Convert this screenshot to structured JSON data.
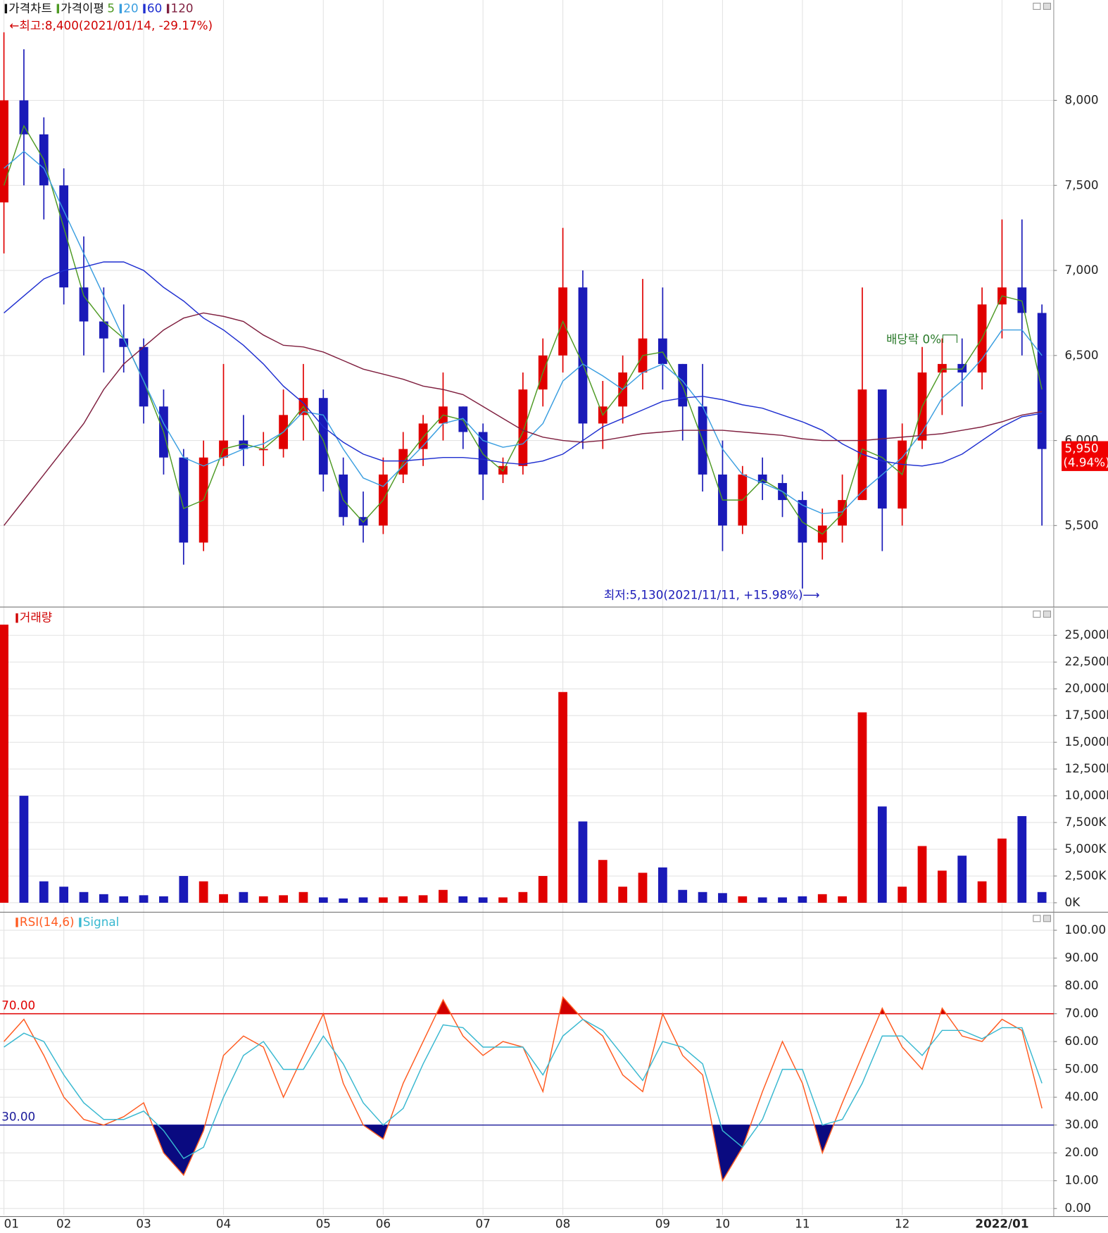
{
  "chart_data": [
    {
      "type": "candlestick",
      "title": "가격차트",
      "ma_title": "가격이평",
      "up_color": "#e00000",
      "down_color": "#1a1ab8",
      "open": [
        7400,
        8000,
        7800,
        7500,
        6900,
        6700,
        6600,
        6550,
        6200,
        5900,
        5400,
        5900,
        6000,
        5950,
        5950,
        6150,
        6250,
        5800,
        5550,
        5500,
        5800,
        5950,
        6100,
        6200,
        6050,
        5800,
        5850,
        6300,
        6500,
        6900,
        6100,
        6200,
        6400,
        6600,
        6450,
        6200,
        5800,
        5500,
        5800,
        5750,
        5650,
        5400,
        5500,
        5650,
        6300,
        5600,
        6000,
        6400,
        6450,
        6400,
        6800,
        6900,
        6750
      ],
      "high": [
        8400,
        8300,
        7900,
        7600,
        7200,
        6900,
        6800,
        6600,
        6300,
        5950,
        6000,
        6450,
        6150,
        6050,
        6300,
        6450,
        6300,
        5900,
        5700,
        5900,
        6050,
        6150,
        6400,
        6200,
        6100,
        5900,
        6400,
        6600,
        7250,
        7000,
        6350,
        6500,
        6950,
        6900,
        6450,
        6450,
        6000,
        5850,
        5900,
        5800,
        5700,
        5600,
        5800,
        6900,
        6300,
        6100,
        6550,
        6600,
        6600,
        6900,
        7300,
        7300,
        6800
      ],
      "low": [
        7100,
        7500,
        7300,
        6800,
        6500,
        6400,
        6400,
        6100,
        5800,
        5270,
        5350,
        5850,
        5850,
        5850,
        5900,
        6000,
        5700,
        5500,
        5400,
        5450,
        5750,
        5850,
        6000,
        5950,
        5650,
        5750,
        5800,
        6200,
        6400,
        5950,
        5950,
        6100,
        6300,
        6300,
        6000,
        5700,
        5350,
        5450,
        5650,
        5550,
        5130,
        5300,
        5400,
        5650,
        5350,
        5500,
        5950,
        6150,
        6200,
        6300,
        6600,
        6500,
        5500
      ],
      "close": [
        8000,
        7800,
        7500,
        6900,
        6700,
        6600,
        6550,
        6200,
        5900,
        5400,
        5900,
        6000,
        5950,
        5950,
        6150,
        6250,
        5800,
        5550,
        5500,
        5800,
        5950,
        6100,
        6200,
        6050,
        5800,
        5850,
        6300,
        6500,
        6900,
        6100,
        6200,
        6400,
        6600,
        6450,
        6200,
        5800,
        5500,
        5800,
        5750,
        5650,
        5400,
        5500,
        5650,
        6300,
        5600,
        6000,
        6400,
        6450,
        6400,
        6800,
        6900,
        6750,
        5950
      ],
      "series": [
        {
          "name": "5",
          "color": "#4e9a24",
          "values": [
            7500,
            7850,
            7650,
            7250,
            6850,
            6700,
            6600,
            6350,
            6050,
            5600,
            5650,
            5950,
            5980,
            5950,
            6050,
            6200,
            6000,
            5650,
            5520,
            5650,
            5870,
            6020,
            6150,
            6120,
            5920,
            5820,
            6050,
            6400,
            6700,
            6450,
            6150,
            6300,
            6500,
            6520,
            6320,
            6000,
            5650,
            5650,
            5770,
            5700,
            5520,
            5450,
            5570,
            5950,
            5900,
            5800,
            6200,
            6420,
            6420,
            6600,
            6850,
            6820,
            6300
          ]
        },
        {
          "name": "20",
          "color": "#3a9ee0",
          "values": [
            7600,
            7700,
            7600,
            7350,
            7100,
            6850,
            6600,
            6350,
            6100,
            5900,
            5850,
            5900,
            5950,
            5980,
            6050,
            6170,
            6150,
            5950,
            5780,
            5730,
            5850,
            5970,
            6100,
            6130,
            6000,
            5960,
            5980,
            6100,
            6350,
            6450,
            6380,
            6300,
            6400,
            6450,
            6350,
            6200,
            5950,
            5800,
            5750,
            5700,
            5620,
            5570,
            5580,
            5700,
            5800,
            5900,
            6050,
            6250,
            6350,
            6480,
            6650,
            6650,
            6500
          ]
        },
        {
          "name": "60",
          "color": "#1f2fd0",
          "values": [
            6750,
            6850,
            6950,
            7000,
            7020,
            7050,
            7050,
            7000,
            6900,
            6820,
            6720,
            6650,
            6560,
            6450,
            6320,
            6220,
            6080,
            5990,
            5920,
            5880,
            5880,
            5890,
            5900,
            5900,
            5890,
            5870,
            5860,
            5880,
            5920,
            6000,
            6080,
            6130,
            6180,
            6230,
            6250,
            6260,
            6240,
            6210,
            6190,
            6150,
            6110,
            6060,
            5980,
            5920,
            5880,
            5860,
            5850,
            5870,
            5920,
            6000,
            6080,
            6140,
            6160
          ]
        },
        {
          "name": "120",
          "color": "#7f1f3f",
          "values": [
            5500,
            5650,
            5800,
            5950,
            6100,
            6300,
            6450,
            6550,
            6650,
            6720,
            6750,
            6730,
            6700,
            6620,
            6560,
            6550,
            6520,
            6470,
            6420,
            6390,
            6360,
            6320,
            6300,
            6270,
            6200,
            6130,
            6060,
            6020,
            6000,
            5990,
            6000,
            6020,
            6040,
            6050,
            6060,
            6060,
            6060,
            6050,
            6040,
            6030,
            6010,
            6000,
            6000,
            6000,
            6010,
            6020,
            6030,
            6040,
            6060,
            6080,
            6110,
            6150,
            6170
          ]
        }
      ],
      "ylim": [
        5030,
        8590
      ],
      "yticks": [
        {
          "value": 5500,
          "label": "5,500"
        },
        {
          "value": 6000,
          "label": "6,000"
        },
        {
          "value": 6500,
          "label": "6,500"
        },
        {
          "value": 7000,
          "label": "7,000"
        },
        {
          "value": 7500,
          "label": "7,500"
        },
        {
          "value": 8000,
          "label": "8,000"
        }
      ],
      "annotations": [
        {
          "text": "←최고:8,400(2021/01/14, -29.17%)",
          "color": "#d00000"
        },
        {
          "text": "최저:5,130(2021/11/11, +15.98%)⟶",
          "color": "#1a1ab8"
        },
        {
          "text": "배당락 0%",
          "color": "#2a7a2a"
        }
      ],
      "last_price": {
        "value": 5950,
        "label": "5,950"
      },
      "change_label": "(4.94%)"
    },
    {
      "type": "bar",
      "title": "거래량",
      "color": "#d00000",
      "values": [
        26000,
        10000,
        2000,
        1500,
        1000,
        800,
        600,
        700,
        600,
        2500,
        2000,
        800,
        1000,
        600,
        700,
        1000,
        500,
        400,
        500,
        500,
        600,
        700,
        1200,
        600,
        500,
        500,
        1000,
        2500,
        19700,
        7600,
        4000,
        1500,
        2800,
        3300,
        1200,
        1000,
        900,
        600,
        500,
        500,
        600,
        800,
        600,
        17800,
        9000,
        1500,
        5300,
        3000,
        4400,
        2000,
        6000,
        8100,
        1000
      ],
      "ylim": [
        -735,
        27570
      ],
      "yticks": [
        {
          "value": 0,
          "label": "0K"
        },
        {
          "value": 2500,
          "label": "2,500K"
        },
        {
          "value": 5000,
          "label": "5,000K"
        },
        {
          "value": 7500,
          "label": "7,500K"
        },
        {
          "value": 10000,
          "label": "10,000K"
        },
        {
          "value": 12500,
          "label": "12,500K"
        },
        {
          "value": 15000,
          "label": "15,000K"
        },
        {
          "value": 17500,
          "label": "17,500K"
        },
        {
          "value": 20000,
          "label": "20,000K"
        },
        {
          "value": 22500,
          "label": "22,500K"
        },
        {
          "value": 25000,
          "label": "25,000K"
        }
      ]
    },
    {
      "type": "line",
      "categories": [
        "01",
        null,
        null,
        "02",
        null,
        null,
        null,
        "03",
        null,
        null,
        null,
        "04",
        null,
        null,
        null,
        null,
        "05",
        null,
        null,
        "06",
        null,
        null,
        null,
        null,
        "07",
        null,
        null,
        null,
        "08",
        null,
        null,
        null,
        null,
        "09",
        null,
        null,
        "10",
        null,
        null,
        null,
        "11",
        null,
        null,
        null,
        null,
        "12",
        null,
        null,
        null,
        null,
        "2022/01",
        null,
        null
      ],
      "series": [
        {
          "name": "RSI(14,6)",
          "color": "#ff5a1f",
          "values": [
            60,
            68,
            55,
            40,
            32,
            30,
            33,
            38,
            20,
            12,
            28,
            55,
            62,
            58,
            40,
            55,
            70,
            45,
            30,
            25,
            45,
            60,
            75,
            62,
            55,
            60,
            58,
            42,
            76,
            68,
            62,
            48,
            42,
            70,
            55,
            48,
            10,
            22,
            42,
            60,
            45,
            20,
            38,
            55,
            72,
            58,
            50,
            72,
            62,
            60,
            68,
            64,
            36
          ]
        },
        {
          "name": "Signal",
          "color": "#38b8d0",
          "values": [
            58,
            63,
            60,
            48,
            38,
            32,
            32,
            35,
            28,
            18,
            22,
            40,
            55,
            60,
            50,
            50,
            62,
            52,
            38,
            30,
            36,
            52,
            66,
            65,
            58,
            58,
            58,
            48,
            62,
            68,
            64,
            55,
            46,
            60,
            58,
            52,
            28,
            22,
            32,
            50,
            50,
            30,
            32,
            45,
            62,
            62,
            55,
            64,
            64,
            61,
            65,
            65,
            45
          ]
        }
      ],
      "reference_lines": [
        {
          "value": 70,
          "label": "70.00",
          "color": "#e00000",
          "fill": "#d00000"
        },
        {
          "value": 30,
          "label": "30.00",
          "color": "#1a1a9a",
          "fill": "#0a0a80"
        }
      ],
      "ylim": [
        -2.3,
        106.5
      ],
      "yticks": [
        {
          "value": 0,
          "label": "0.00"
        },
        {
          "value": 10,
          "label": "10.00"
        },
        {
          "value": 20,
          "label": "20.00"
        },
        {
          "value": 30,
          "label": "30.00"
        },
        {
          "value": 40,
          "label": "40.00"
        },
        {
          "value": 50,
          "label": "50.00"
        },
        {
          "value": 60,
          "label": "60.00"
        },
        {
          "value": 70,
          "label": "70.00"
        },
        {
          "value": 80,
          "label": "80.00"
        },
        {
          "value": 90,
          "label": "90.00"
        },
        {
          "value": 100,
          "label": "100.00"
        }
      ]
    }
  ]
}
